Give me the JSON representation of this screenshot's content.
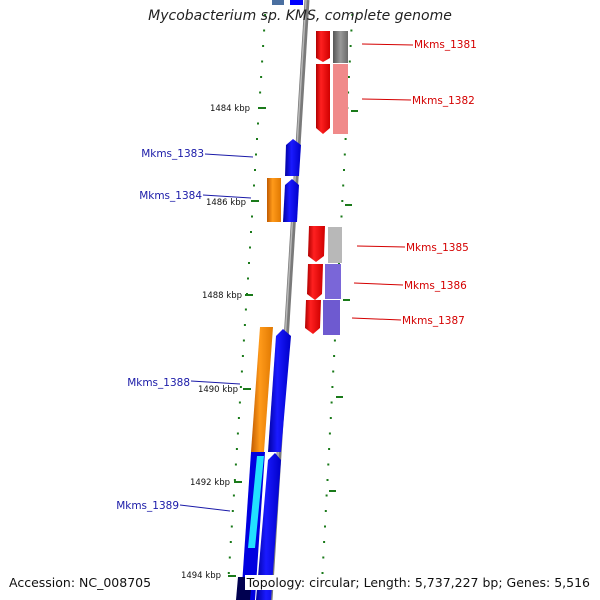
{
  "title": "Mycobacterium sp. KMS, complete genome",
  "accession": "Accession: NC_008705",
  "summary": "Topology: circular; Length: 5,737,227 bp; Genes: 5,516",
  "colors": {
    "forward_label": "#d40000",
    "reverse_label": "#1a1aa8",
    "backbone": "#8a8a8a",
    "tick": "#1a7a1a"
  },
  "kbp_labels": [
    "1484 kbp",
    "1486 kbp",
    "1488 kbp",
    "1490 kbp",
    "1492 kbp",
    "1494 kbp"
  ],
  "forward_genes": [
    {
      "name": "Mkms_1381",
      "color": "#ff0000"
    },
    {
      "name": "Mkms_1382",
      "color": "#ff0000"
    },
    {
      "name": "Mkms_1385",
      "color": "#ff0000"
    },
    {
      "name": "Mkms_1386",
      "color": "#ff0000"
    },
    {
      "name": "Mkms_1387",
      "color": "#ff0000"
    }
  ],
  "reverse_genes": [
    {
      "name": "Mkms_1383",
      "color": "#0000ff"
    },
    {
      "name": "Mkms_1384",
      "color": "#0000ff"
    },
    {
      "name": "Mkms_1388",
      "color": "#0000ff"
    },
    {
      "name": "Mkms_1389",
      "color": "#0000ff"
    }
  ]
}
